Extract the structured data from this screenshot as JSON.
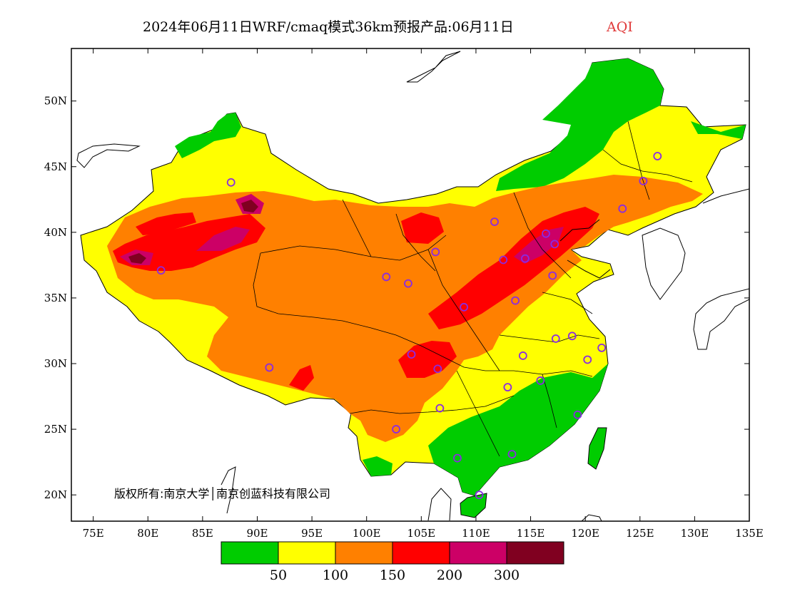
{
  "title": {
    "main": "2024年06月11日WRF/cmaq模式36km预报产品:06月11日",
    "variable": "AQI"
  },
  "axes": {
    "lon_ticks": [
      "75E",
      "80E",
      "85E",
      "90E",
      "95E",
      "100E",
      "105E",
      "110E",
      "115E",
      "120E",
      "125E",
      "130E",
      "135E"
    ],
    "lat_ticks": [
      "20N",
      "25N",
      "30N",
      "35N",
      "40N",
      "45N",
      "50N"
    ],
    "lon_range": [
      73,
      135
    ],
    "lat_range": [
      18,
      54
    ]
  },
  "copyright": "版权所有:南京大学│南京创蓝科技有限公司",
  "legend": {
    "colors": [
      "#00cc00",
      "#ffff00",
      "#ff8000",
      "#ff0000",
      "#cc0066",
      "#800020"
    ],
    "labels": [
      "50",
      "100",
      "150",
      "200",
      "300"
    ]
  },
  "stations": [
    {
      "lon": 87.6,
      "lat": 43.8
    },
    {
      "lon": 81.2,
      "lat": 37.1
    },
    {
      "lon": 91.1,
      "lat": 29.7
    },
    {
      "lon": 101.8,
      "lat": 36.6
    },
    {
      "lon": 103.8,
      "lat": 36.1
    },
    {
      "lon": 106.3,
      "lat": 38.5
    },
    {
      "lon": 111.7,
      "lat": 40.8
    },
    {
      "lon": 116.4,
      "lat": 39.9
    },
    {
      "lon": 117.2,
      "lat": 39.1
    },
    {
      "lon": 114.5,
      "lat": 38.0
    },
    {
      "lon": 112.5,
      "lat": 37.9
    },
    {
      "lon": 108.9,
      "lat": 34.3
    },
    {
      "lon": 113.6,
      "lat": 34.8
    },
    {
      "lon": 117.0,
      "lat": 36.7
    },
    {
      "lon": 104.1,
      "lat": 30.7
    },
    {
      "lon": 106.5,
      "lat": 29.6
    },
    {
      "lon": 114.3,
      "lat": 30.6
    },
    {
      "lon": 117.3,
      "lat": 31.9
    },
    {
      "lon": 118.8,
      "lat": 32.1
    },
    {
      "lon": 121.5,
      "lat": 31.2
    },
    {
      "lon": 120.2,
      "lat": 30.3
    },
    {
      "lon": 112.9,
      "lat": 28.2
    },
    {
      "lon": 115.9,
      "lat": 28.7
    },
    {
      "lon": 119.3,
      "lat": 26.1
    },
    {
      "lon": 113.3,
      "lat": 23.1
    },
    {
      "lon": 108.3,
      "lat": 22.8
    },
    {
      "lon": 110.3,
      "lat": 20.0
    },
    {
      "lon": 106.7,
      "lat": 26.6
    },
    {
      "lon": 102.7,
      "lat": 25.0
    },
    {
      "lon": 123.4,
      "lat": 41.8
    },
    {
      "lon": 125.3,
      "lat": 43.9
    },
    {
      "lon": 126.6,
      "lat": 45.8
    }
  ]
}
